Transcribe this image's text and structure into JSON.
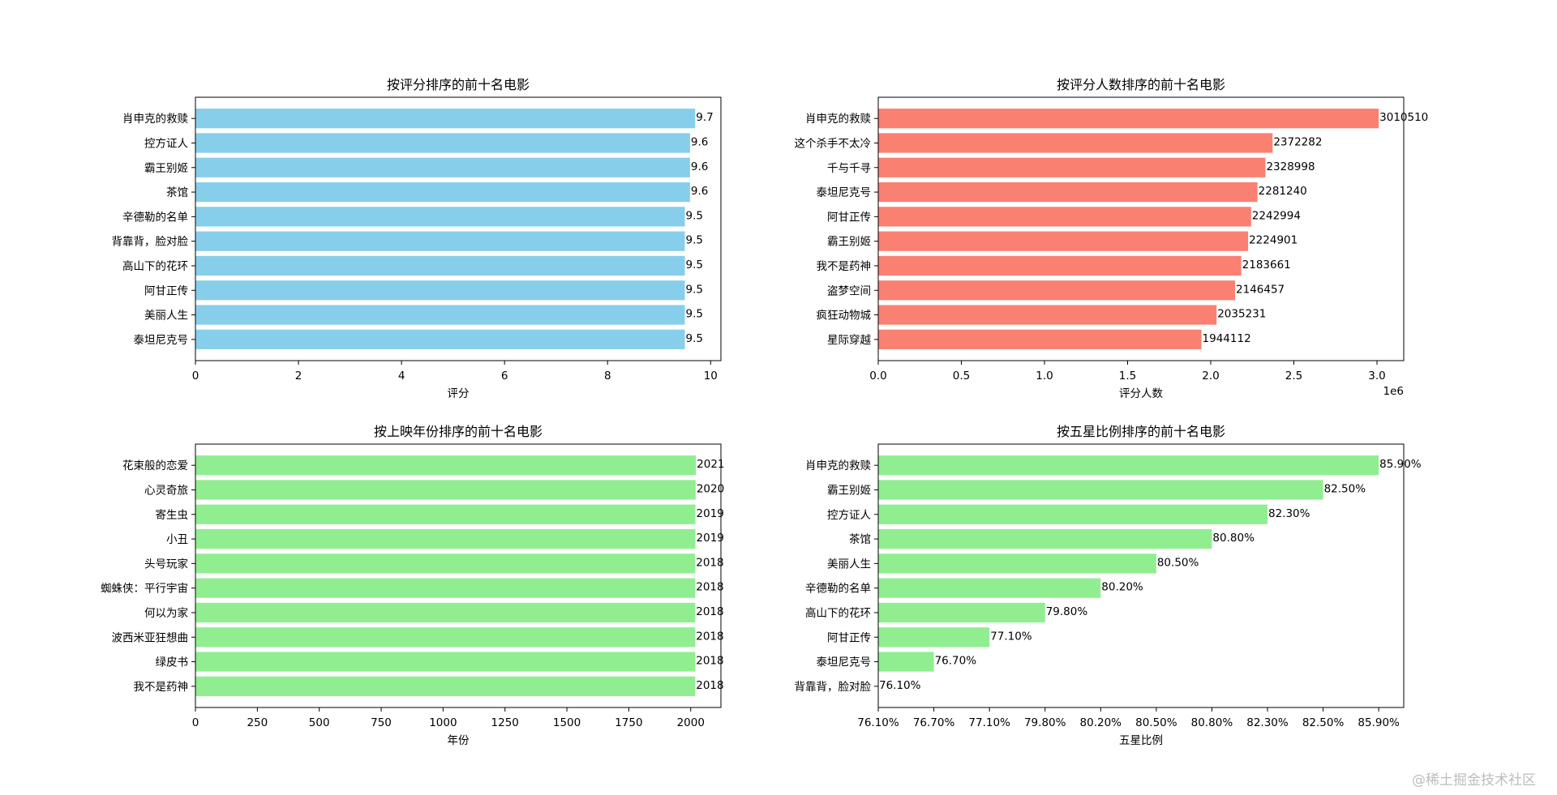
{
  "watermark": "@稀土掘金技术社区",
  "chart_data": [
    {
      "type": "bar",
      "orientation": "horizontal",
      "title": "按评分排序的前十名电影",
      "xlabel": "评分",
      "categories": [
        "肖申克的救赎",
        "控方证人",
        "霸王别姬",
        "茶馆",
        "辛德勒的名单",
        "背靠背，脸对脸",
        "高山下的花环",
        "阿甘正传",
        "美丽人生",
        "泰坦尼克号"
      ],
      "values": [
        9.7,
        9.6,
        9.6,
        9.6,
        9.5,
        9.5,
        9.5,
        9.5,
        9.5,
        9.5
      ],
      "value_labels": [
        "9.7",
        "9.6",
        "9.6",
        "9.6",
        "9.5",
        "9.5",
        "9.5",
        "9.5",
        "9.5",
        "9.5"
      ],
      "xlim": [
        0,
        10.2
      ],
      "xticks": [
        0,
        2,
        4,
        6,
        8,
        10
      ],
      "xtick_labels": [
        "0",
        "2",
        "4",
        "6",
        "8",
        "10"
      ],
      "color": "#87ceeb"
    },
    {
      "type": "bar",
      "orientation": "horizontal",
      "title": "按评分人数排序的前十名电影",
      "xlabel": "评分人数",
      "axis_offset_label": "1e6",
      "categories": [
        "肖申克的救赎",
        "这个杀手不太冷",
        "千与千寻",
        "泰坦尼克号",
        "阿甘正传",
        "霸王别姬",
        "我不是药神",
        "盗梦空间",
        "疯狂动物城",
        "星际穿越"
      ],
      "values": [
        3010510,
        2372282,
        2328998,
        2281240,
        2242994,
        2224901,
        2183661,
        2146457,
        2035231,
        1944112
      ],
      "value_labels": [
        "3010510",
        "2372282",
        "2328998",
        "2281240",
        "2242994",
        "2224901",
        "2183661",
        "2146457",
        "2035231",
        "1944112"
      ],
      "xlim": [
        0,
        3161000
      ],
      "xticks": [
        0,
        500000,
        1000000,
        1500000,
        2000000,
        2500000,
        3000000
      ],
      "xtick_labels": [
        "0.0",
        "0.5",
        "1.0",
        "1.5",
        "2.0",
        "2.5",
        "3.0"
      ],
      "color": "#fa8072"
    },
    {
      "type": "bar",
      "orientation": "horizontal",
      "title": "按上映年份排序的前十名电影",
      "xlabel": "年份",
      "categories": [
        "花束般的恋爱",
        "心灵奇旅",
        "寄生虫",
        "小丑",
        "头号玩家",
        "蜘蛛侠：平行宇宙",
        "何以为家",
        "波西米亚狂想曲",
        "绿皮书",
        "我不是药神"
      ],
      "values": [
        2021,
        2020,
        2019,
        2019,
        2018,
        2018,
        2018,
        2018,
        2018,
        2018
      ],
      "value_labels": [
        "2021",
        "2020",
        "2019",
        "2019",
        "2018",
        "2018",
        "2018",
        "2018",
        "2018",
        "2018"
      ],
      "xlim": [
        0,
        2122
      ],
      "xticks": [
        0,
        250,
        500,
        750,
        1000,
        1250,
        1500,
        1750,
        2000
      ],
      "xtick_labels": [
        "0",
        "250",
        "500",
        "750",
        "1000",
        "1250",
        "1500",
        "1750",
        "2000"
      ],
      "color": "#90ee90"
    },
    {
      "type": "bar",
      "orientation": "horizontal",
      "title": "按五星比例排序的前十名电影",
      "xlabel": "五星比例",
      "categories": [
        "肖申克的救赎",
        "霸王别姬",
        "控方证人",
        "茶馆",
        "美丽人生",
        "辛德勒的名单",
        "高山下的花环",
        "阿甘正传",
        "泰坦尼克号",
        "背靠背，脸对脸"
      ],
      "values": [
        9,
        8,
        7,
        6,
        5,
        4,
        3,
        2,
        1,
        0
      ],
      "value_labels": [
        "85.90%",
        "82.50%",
        "82.30%",
        "80.80%",
        "80.50%",
        "80.20%",
        "79.80%",
        "77.10%",
        "76.70%",
        "76.10%"
      ],
      "xlim": [
        0,
        9.45
      ],
      "xticks": [
        0,
        1,
        2,
        3,
        4,
        5,
        6,
        7,
        8,
        9
      ],
      "xtick_labels": [
        "76.10%",
        "76.70%",
        "77.10%",
        "79.80%",
        "80.20%",
        "80.50%",
        "80.80%",
        "82.30%",
        "82.50%",
        "85.90%"
      ],
      "note": "categorical x-axis: each bar ends at its own percentage tick",
      "color": "#90ee90"
    }
  ]
}
